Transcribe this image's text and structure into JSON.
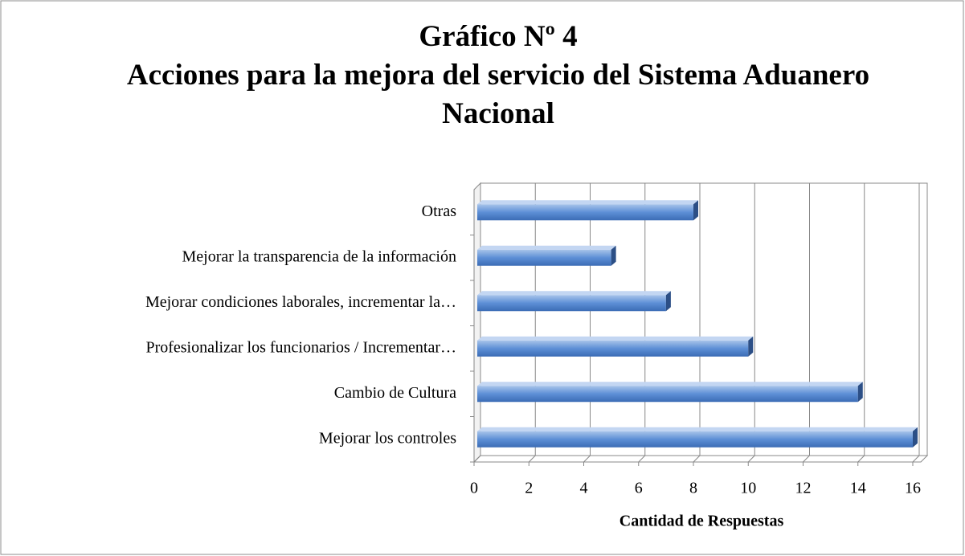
{
  "chart_data": {
    "type": "bar",
    "orientation": "horizontal",
    "title": "Gráfico Nº 4",
    "subtitle": "Acciones para la mejora del servicio del Sistema Aduanero Nacional",
    "categories": [
      "Mejorar los controles",
      "Cambio de Cultura",
      "Profesionalizar los funcionarios / Incrementar…",
      "Mejorar condiciones laborales, incrementar la…",
      "Mejorar la transparencia de la información",
      "Otras"
    ],
    "values": [
      16,
      14,
      10,
      7,
      5,
      8
    ],
    "color": "#4f81bd",
    "xlabel": "Cantidad de Respuestas",
    "xlim": [
      0,
      16
    ],
    "xticks": [
      0,
      2,
      4,
      6,
      8,
      10,
      12,
      14,
      16
    ],
    "grid": true
  }
}
